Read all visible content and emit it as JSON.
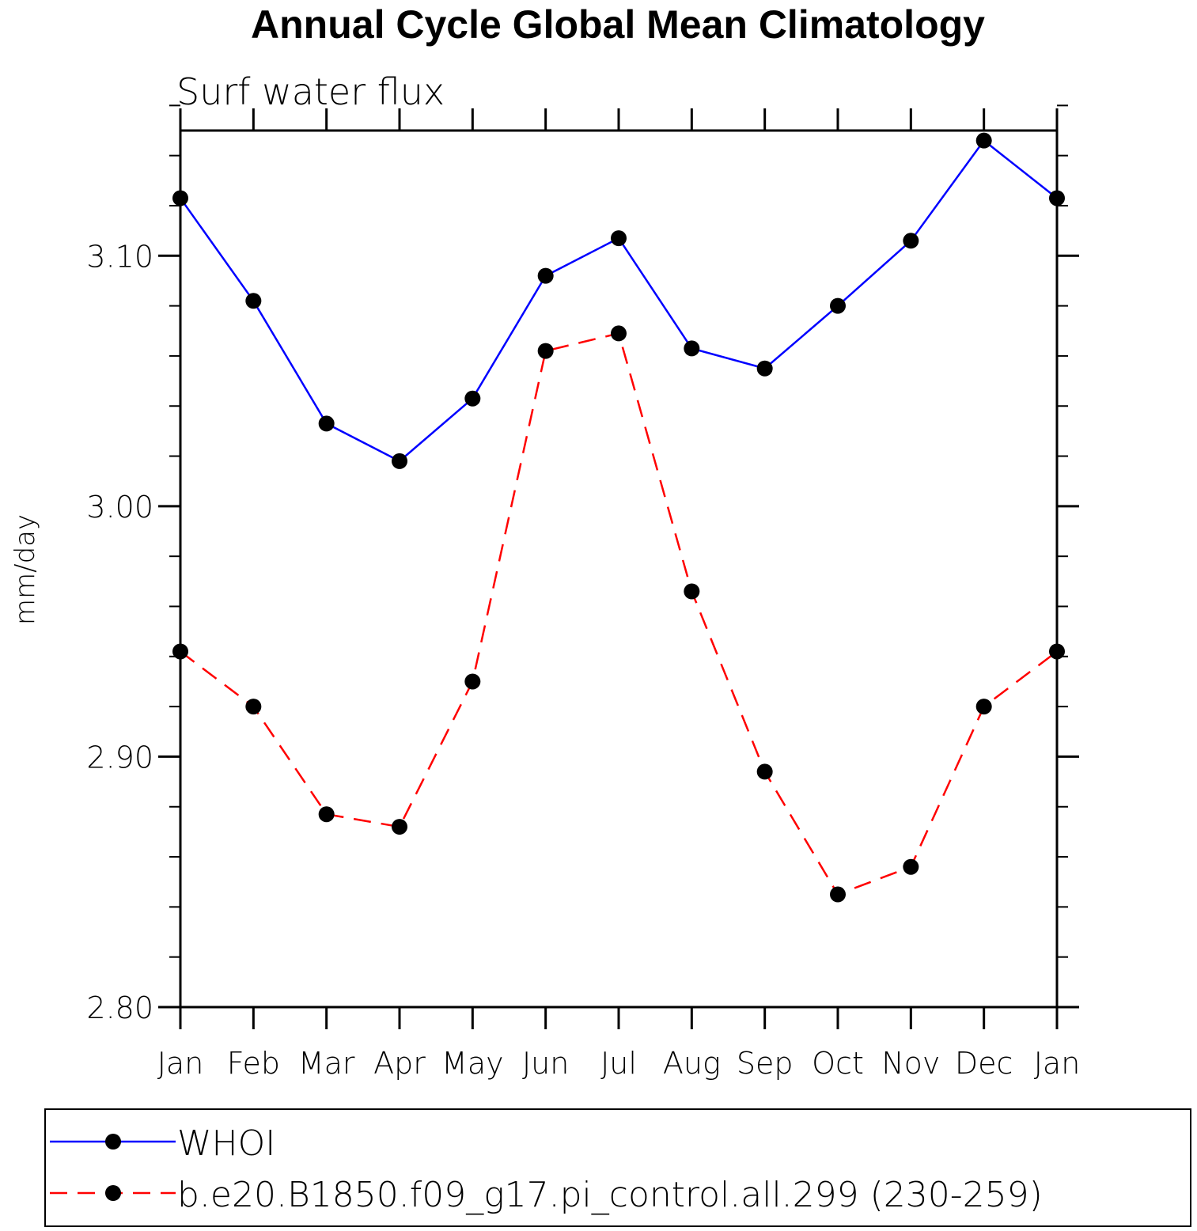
{
  "chart_data": {
    "type": "line",
    "title": "Annual Cycle Global Mean Climatology",
    "subtitle": "Surf water flux",
    "xlabel": "",
    "ylabel": "mm/day",
    "categories": [
      "Jan",
      "Feb",
      "Mar",
      "Apr",
      "May",
      "Jun",
      "Jul",
      "Aug",
      "Sep",
      "Oct",
      "Nov",
      "Dec",
      "Jan"
    ],
    "ylim": [
      2.8,
      3.15
    ],
    "yticks_major": [
      "2.80",
      "2.90",
      "3.00",
      "3.10"
    ],
    "ytick_minor_step": 0.02,
    "grid": false,
    "legend_position": "bottom",
    "series": [
      {
        "name": "WHOI",
        "color": "#0000ff",
        "dash": "solid",
        "marker": "circle",
        "values": [
          3.123,
          3.082,
          3.033,
          3.018,
          3.043,
          3.092,
          3.107,
          3.063,
          3.055,
          3.08,
          3.106,
          3.146,
          3.123
        ]
      },
      {
        "name": "b.e20.B1850.f09_g17.pi_control.all.299 (230-259)",
        "color": "#ff0000",
        "dash": "dashed",
        "marker": "circle",
        "values": [
          2.942,
          2.92,
          2.877,
          2.872,
          2.93,
          3.062,
          3.069,
          2.966,
          2.894,
          2.845,
          2.856,
          2.92,
          2.942
        ]
      }
    ]
  }
}
